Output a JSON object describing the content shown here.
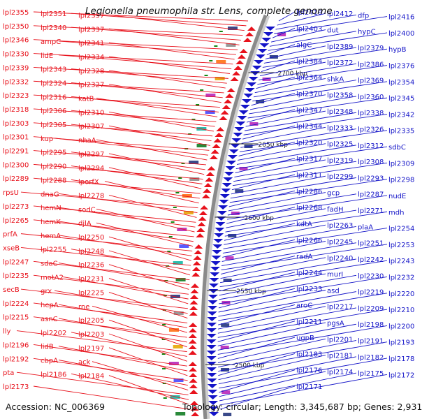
{
  "title": "Legionella pneumophila str. Lens, complete genome",
  "footer": {
    "accession": "Accession: NC_006369",
    "topology": "Topology: circular; Length: 3,345,687 bp; Genes: 2,931"
  },
  "colors": {
    "left_strand": "#e8121c",
    "right_strand": "#1414c8",
    "backbone": "#888888",
    "tick_marker": "#118811"
  },
  "kbp_markers": [
    "2700 kbp",
    "2650 kbp",
    "2600 kbp",
    "2550 kbp",
    "2500 kbp"
  ],
  "left_labels": [
    "lpl2355",
    "lpl2351",
    "lpl2357",
    "lpl2350",
    "lpl2340",
    "lpl2337",
    "lpl2346",
    "ampC",
    "lpl2341",
    "lpl2330",
    "lidE",
    "lpl2334",
    "lpl2339",
    "lpl2343",
    "lpl2328",
    "lpl2332",
    "lpl2324",
    "lpl2327",
    "lpl2323",
    "lpl2316",
    "katB",
    "lpl2318",
    "lpl2306",
    "lpl2310",
    "lpl2303",
    "lpl2305",
    "lpl2307",
    "lpl2301",
    "kup",
    "nhaA",
    "lpl2291",
    "lpl2295",
    "lpl2297",
    "lpl2300",
    "lpl2290",
    "lpl2294",
    "lpl2289",
    "lpl2288",
    "lporfX",
    "rpsU",
    "dnaG",
    "lpl2278",
    "lpl2273",
    "hemN",
    "sodC",
    "lpl2265",
    "hemK",
    "djlA",
    "prfA",
    "hemA",
    "lpl2250",
    "xseB",
    "lpl2255",
    "lpl2248",
    "lpl2247",
    "sdaC",
    "lpl2236",
    "lpl2235",
    "motA2",
    "lpl2231",
    "secB",
    "grx",
    "lpl2225",
    "lpl2224",
    "hepA",
    "rne",
    "lpl2215",
    "asnC",
    "lpl2205",
    "lly",
    "lpl2202",
    "lpl2203",
    "lpl2196",
    "lidB",
    "lpl2197",
    "lpl2192",
    "cbpA",
    "ack",
    "pta",
    "lpl2186",
    "lpl2184",
    "lpl2173"
  ],
  "right_labels": [
    "lpl2419",
    "lpl2412",
    "dfp",
    "lpl2416",
    "lpl2403",
    "dut",
    "hypC",
    "lpl2400",
    "algC",
    "lpl2389",
    "lpl2379",
    "hypB",
    "lpl2384",
    "lpl2372",
    "lpl2386",
    "lpl2376",
    "lpl2364",
    "shkA",
    "lpl2369",
    "lpl2354",
    "lpl2370",
    "lpl2358",
    "lpl2360",
    "lpl2345",
    "lpl2347",
    "lpl2348",
    "lpl2338",
    "lpl2342",
    "lpl2344",
    "lpl2333",
    "lpl2326",
    "lpl2335",
    "lpl2320",
    "lpl2325",
    "lpl2312",
    "sdbC",
    "lpl2317",
    "lpl2319",
    "lpl2308",
    "lpl2309",
    "lpl2311",
    "lpl2299",
    "lpl2293",
    "lpl2298",
    "lpl2286",
    "gcp",
    "lpl2287",
    "nudE",
    "lpl2268",
    "fadH",
    "lpl2271",
    "mdh",
    "kdtA",
    "lpl2263",
    "plaA",
    "lpl2254",
    "lpl2266",
    "lpl2245",
    "lpl2251",
    "lpl2253",
    "radA",
    "lpl2240",
    "lpl2242",
    "lpl2243",
    "lpl2244",
    "murI",
    "lpl2230",
    "lpl2232",
    "lpl2233",
    "asd",
    "lpl2219",
    "lpl2220",
    "aroC",
    "lpl2217",
    "lpl2209",
    "lpl2210",
    "lpl2211",
    "pgsA",
    "lpl2198",
    "lpl2200",
    "ugpB",
    "lpl2201",
    "lpl2191",
    "lpl2193",
    "lpl2183",
    "lpl2181",
    "lpl2182",
    "lpl2178",
    "lpl2176",
    "lpl2174",
    "lpl2175",
    "lpl2172",
    "lpl2171"
  ]
}
